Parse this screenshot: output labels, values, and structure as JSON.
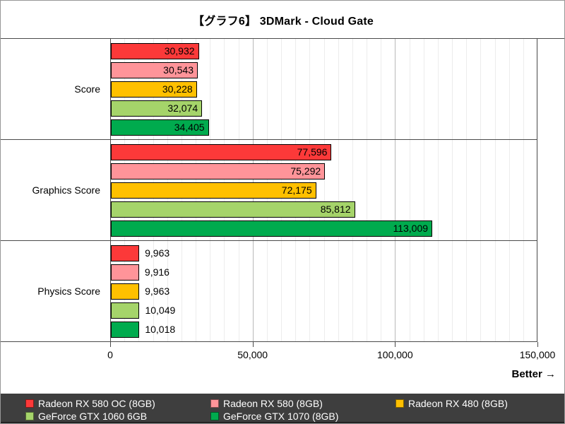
{
  "title": "【グラフ6】 3DMark - Cloud Gate",
  "better_label": "Better →",
  "chart_data": {
    "type": "bar",
    "orientation": "horizontal",
    "title": "【グラフ6】 3DMark - Cloud Gate",
    "categories": [
      "Score",
      "Graphics Score",
      "Physics Score"
    ],
    "series": [
      {
        "name": "Radeon RX 580 OC (8GB)",
        "color": "#fc3939",
        "values": [
          30932,
          77596,
          9963
        ]
      },
      {
        "name": "Radeon RX 580 (8GB)",
        "color": "#ff9499",
        "values": [
          30543,
          75292,
          9916
        ]
      },
      {
        "name": "Radeon RX 480 (8GB)",
        "color": "#ffc000",
        "values": [
          30228,
          72175,
          9963
        ]
      },
      {
        "name": "GeForce GTX 1060 6GB",
        "color": "#a5d46a",
        "values": [
          32074,
          85812,
          10049
        ]
      },
      {
        "name": "GeForce GTX 1070 (8GB)",
        "color": "#00ab4e",
        "values": [
          34405,
          113009,
          10018
        ]
      }
    ],
    "xlim": [
      0,
      150000
    ],
    "x_tick_step": 50000,
    "x_tick_labels": [
      "0",
      "50,000",
      "100,000",
      "150,000"
    ],
    "minor_grid_step": 5000,
    "grid": true,
    "value_labels": true,
    "legend_position": "bottom",
    "better_label": "Better →"
  },
  "colors": {
    "frame": "#4a4a4a",
    "minor_grid": "#ececec",
    "major_grid": "#b9b9b9",
    "bar_border": "#000000",
    "legend_bg": "#3e3e3e",
    "legend_text": "#ffffff"
  }
}
